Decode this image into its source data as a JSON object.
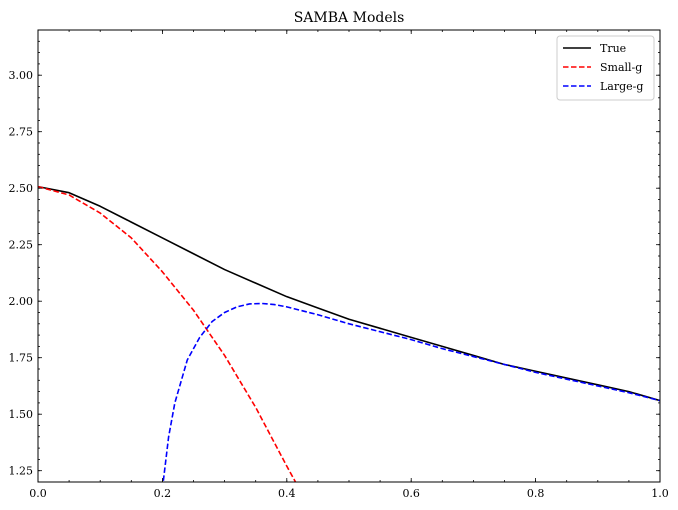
{
  "chart_data": {
    "type": "line",
    "title": "SAMBA Models",
    "xlabel": "",
    "ylabel": "",
    "xlim": [
      0.0,
      1.0
    ],
    "ylim": [
      1.2,
      3.2
    ],
    "xticks": [
      0.0,
      0.2,
      0.4,
      0.6,
      0.8,
      1.0
    ],
    "xtick_labels": [
      "0.0",
      "0.2",
      "0.4",
      "0.6",
      "0.8",
      "1.0"
    ],
    "yticks": [
      1.25,
      1.5,
      1.75,
      2.0,
      2.25,
      2.5,
      2.75,
      3.0
    ],
    "ytick_labels": [
      "1.25",
      "1.50",
      "1.75",
      "2.00",
      "2.25",
      "2.50",
      "2.75",
      "3.00"
    ],
    "grid": false,
    "legend_position": "top-right",
    "series": [
      {
        "name": "True",
        "color": "#000000",
        "dash": "solid",
        "x": [
          0.0,
          0.05,
          0.1,
          0.15,
          0.2,
          0.25,
          0.3,
          0.35,
          0.4,
          0.45,
          0.5,
          0.55,
          0.6,
          0.65,
          0.7,
          0.75,
          0.8,
          0.85,
          0.9,
          0.95,
          1.0
        ],
        "y": [
          2.507,
          2.48,
          2.42,
          2.35,
          2.28,
          2.21,
          2.14,
          2.08,
          2.02,
          1.97,
          1.92,
          1.88,
          1.84,
          1.8,
          1.76,
          1.72,
          1.69,
          1.66,
          1.63,
          1.6,
          1.56
        ]
      },
      {
        "name": "Small-g",
        "color": "#ff0000",
        "dash": "dashed",
        "x": [
          0.0,
          0.05,
          0.1,
          0.15,
          0.2,
          0.25,
          0.3,
          0.35,
          0.4,
          0.42
        ],
        "y": [
          2.507,
          2.47,
          2.39,
          2.28,
          2.13,
          1.96,
          1.76,
          1.53,
          1.27,
          1.17
        ]
      },
      {
        "name": "Large-g",
        "color": "#0000ff",
        "dash": "dashed",
        "x": [
          0.2,
          0.21,
          0.22,
          0.24,
          0.26,
          0.28,
          0.3,
          0.32,
          0.34,
          0.36,
          0.38,
          0.4,
          0.45,
          0.5,
          0.55,
          0.6,
          0.65,
          0.7,
          0.75,
          0.8,
          0.85,
          0.9,
          0.95,
          1.0
        ],
        "y": [
          1.17,
          1.4,
          1.55,
          1.74,
          1.84,
          1.91,
          1.95,
          1.975,
          1.988,
          1.99,
          1.985,
          1.975,
          1.94,
          1.9,
          1.865,
          1.83,
          1.79,
          1.755,
          1.72,
          1.685,
          1.655,
          1.625,
          1.595,
          1.56
        ]
      }
    ]
  }
}
